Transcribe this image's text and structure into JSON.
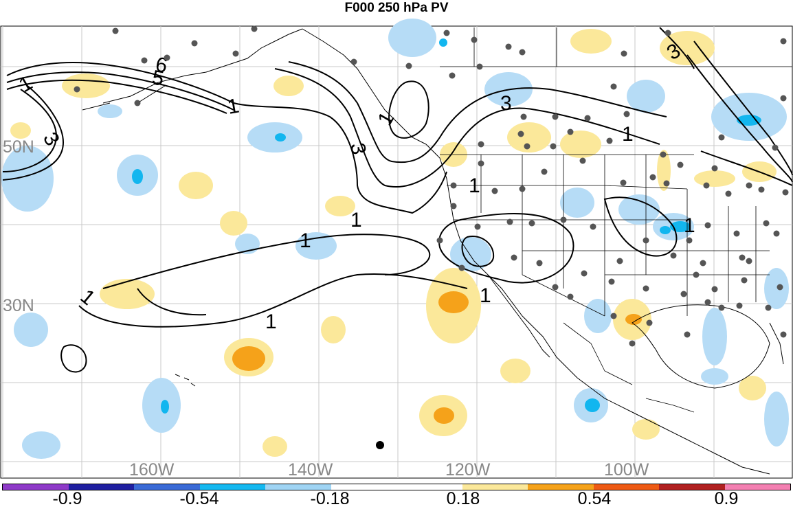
{
  "title": "F000 250 hPa PV",
  "axes": {
    "lat_labels": [
      "50N",
      "30N"
    ],
    "lon_labels": [
      "160W",
      "140W",
      "120W",
      "100W"
    ]
  },
  "contour_labels": {
    "one": "1",
    "three": "3",
    "five": "5",
    "six": "6"
  },
  "colorbar": {
    "colors": [
      "#8e3ac8",
      "#1f1fa0",
      "#3a6ad6",
      "#14b8f0",
      "#9fd4f4",
      "#ffffff",
      "#ffffff",
      "#fbe89a",
      "#f5a21a",
      "#ee5a14",
      "#b02020",
      "#f37fb1"
    ],
    "labels": [
      "-0.9",
      "-0.54",
      "-0.18",
      "0.18",
      "0.54",
      "0.9"
    ]
  },
  "palette": {
    "neg_light": "#b6dcf6",
    "neg_mid": "#12b6ef",
    "pos_light": "#fbe89a",
    "pos_mid": "#f5a21a",
    "station": "#555555"
  }
}
